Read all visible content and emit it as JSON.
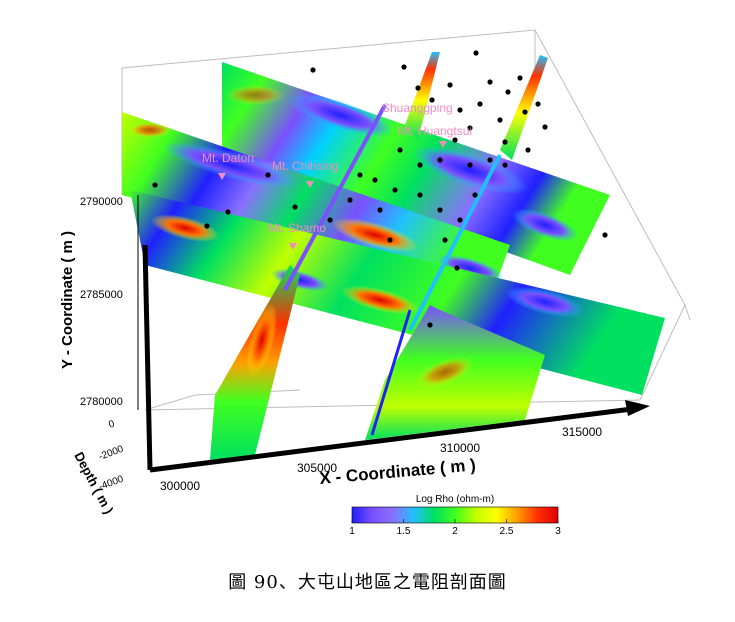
{
  "caption": "圖 90、大屯山地區之電阻剖面圖",
  "chart_data": {
    "type": "3d-resistivity-sections",
    "xlabel": "X - Coordinate ( m )",
    "ylabel": "Y - Coordinate ( m )",
    "zlabel": "Depth ( m )",
    "x_ticks": [
      "300000",
      "305000",
      "310000",
      "315000"
    ],
    "y_ticks": [
      "2780000",
      "2785000",
      "2790000"
    ],
    "z_ticks": [
      "0",
      "-2000",
      "-4000"
    ],
    "colorbar": {
      "title": "Log Rho (ohm-m)",
      "ticks": [
        "1",
        "1.5",
        "2",
        "2.5",
        "3"
      ],
      "range": [
        1,
        3
      ],
      "colors": [
        "#2020ff",
        "#7a50ff",
        "#8a70ff",
        "#20c0ff",
        "#00e060",
        "#40ff20",
        "#c0ff00",
        "#ffff00",
        "#ffa000",
        "#ff3000",
        "#e00000"
      ]
    },
    "peaks": [
      {
        "name": "Shuanggping"
      },
      {
        "name": "Mt. Huangtsui"
      },
      {
        "name": "Mt. Daton"
      },
      {
        "name": "Mt. Chihsing"
      },
      {
        "name": "Mt. Shamo"
      }
    ]
  }
}
